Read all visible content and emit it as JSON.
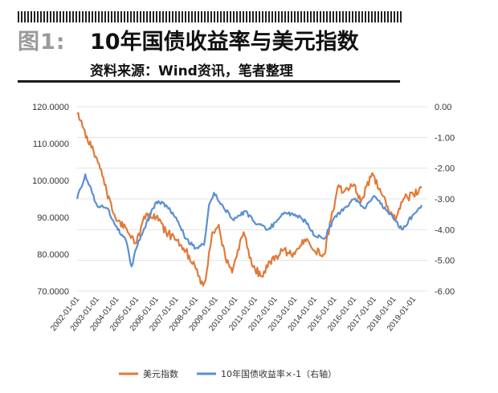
{
  "header": {
    "figure_label": "图1:",
    "title": "10年国债收益率与美元指数",
    "source": "资料来源：Wind资讯，笔者整理"
  },
  "chart_data": {
    "type": "line",
    "title": "",
    "xlabel": "",
    "ylabel": "",
    "left_axis": {
      "ylim": [
        70,
        120
      ],
      "ticks": [
        "70.0000",
        "80.0000",
        "90.0000",
        "100.0000",
        "110.0000",
        "120.0000"
      ]
    },
    "right_axis": {
      "ylim": [
        -6.0,
        0.0
      ],
      "ticks": [
        "0.00",
        "-1.00",
        "-2.00",
        "-3.00",
        "-4.00",
        "-5.00",
        "-6.00"
      ]
    },
    "x_ticks": [
      "2002-01-01",
      "2003-01-01",
      "2004-01-01",
      "2005-01-01",
      "2006-01-01",
      "2007-01-01",
      "2008-01-01",
      "2009-01-01",
      "2010-01-01",
      "2011-01-01",
      "2012-01-01",
      "2013-01-01",
      "2014-01-01",
      "2015-01-01",
      "2016-01-01",
      "2017-01-01",
      "2018-01-01",
      "2019-01-01"
    ],
    "grid": "horizontal",
    "legend_position": "bottom",
    "series": [
      {
        "name": "美元指数",
        "axis": "left",
        "color": "#e07b39",
        "x": [
          "2002-01-01",
          "2002-07-01",
          "2003-01-01",
          "2003-07-01",
          "2004-01-01",
          "2004-07-01",
          "2005-01-01",
          "2005-07-01",
          "2006-01-01",
          "2006-07-01",
          "2007-01-01",
          "2007-07-01",
          "2008-01-01",
          "2008-04-01",
          "2008-07-01",
          "2008-11-01",
          "2009-03-01",
          "2009-07-01",
          "2009-11-01",
          "2010-06-01",
          "2010-11-01",
          "2011-05-01",
          "2011-10-01",
          "2012-06-01",
          "2013-01-01",
          "2013-07-01",
          "2014-01-01",
          "2014-07-01",
          "2015-03-01",
          "2015-07-01",
          "2016-01-01",
          "2016-05-01",
          "2016-12-01",
          "2017-06-01",
          "2018-02-01",
          "2018-07-01",
          "2019-01-01",
          "2019-06-01"
        ],
        "values": [
          118,
          112,
          106,
          97,
          89,
          87,
          83,
          91,
          90,
          86,
          84,
          81,
          76,
          72,
          73,
          86,
          88,
          79,
          75,
          86,
          77,
          74,
          78,
          81,
          80,
          84,
          81,
          80,
          98,
          97,
          99,
          94,
          102,
          96,
          89,
          95,
          96,
          98
        ]
      },
      {
        "name": "10年国债收益率×-1（右轴）",
        "axis": "right",
        "color": "#5b8fd1",
        "x": [
          "2002-01-01",
          "2002-06-01",
          "2003-01-01",
          "2003-07-01",
          "2004-01-01",
          "2004-07-01",
          "2004-10-01",
          "2005-01-01",
          "2005-07-01",
          "2006-01-01",
          "2006-07-01",
          "2007-01-01",
          "2007-07-01",
          "2008-01-01",
          "2008-06-01",
          "2008-09-01",
          "2008-12-01",
          "2009-06-01",
          "2009-12-01",
          "2010-07-01",
          "2011-01-01",
          "2011-09-01",
          "2012-06-01",
          "2013-01-01",
          "2013-09-01",
          "2014-01-01",
          "2014-07-01",
          "2015-01-01",
          "2015-07-01",
          "2016-01-01",
          "2016-07-01",
          "2017-01-01",
          "2017-11-01",
          "2018-06-01",
          "2019-01-01",
          "2019-06-01"
        ],
        "values": [
          -3.0,
          -2.2,
          -3.2,
          -3.3,
          -3.9,
          -4.4,
          -5.2,
          -4.6,
          -3.8,
          -3.1,
          -3.2,
          -3.6,
          -4.3,
          -4.6,
          -4.5,
          -3.2,
          -2.8,
          -3.3,
          -3.7,
          -3.4,
          -3.8,
          -4.0,
          -3.5,
          -3.5,
          -3.8,
          -4.2,
          -4.3,
          -3.6,
          -3.3,
          -3.0,
          -3.3,
          -2.9,
          -3.5,
          -4.0,
          -3.5,
          -3.2
        ]
      }
    ]
  }
}
